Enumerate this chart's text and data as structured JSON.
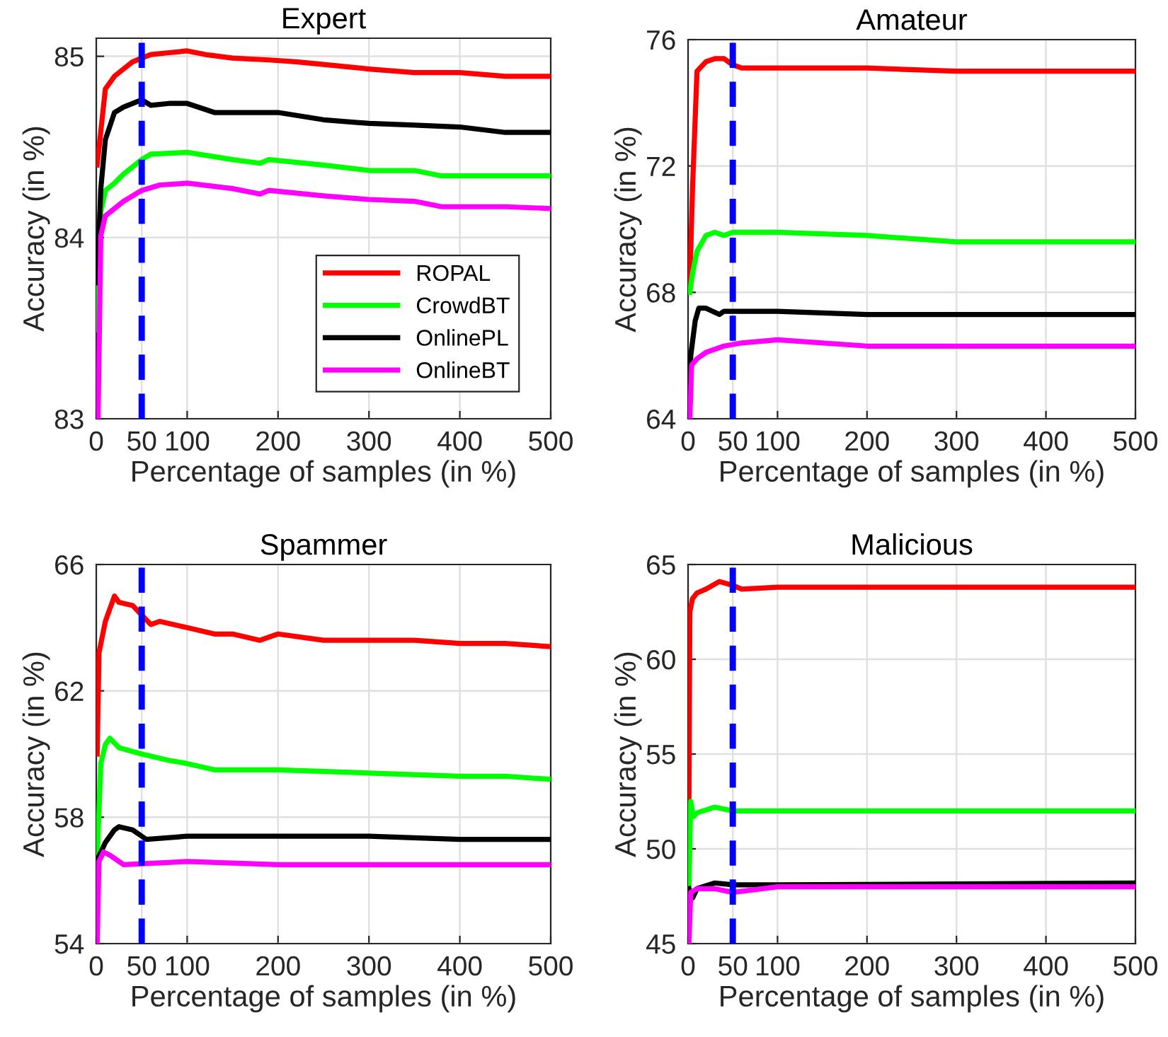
{
  "chart_data": [
    {
      "type": "line",
      "title": "Expert",
      "xlabel": "Percentage of samples (in %)",
      "ylabel": "Accuracy (in %)",
      "xlim": [
        0,
        500
      ],
      "xticks": [
        0,
        50,
        100,
        200,
        300,
        400,
        500
      ],
      "ylim": [
        83,
        85.1
      ],
      "yticks": [
        83,
        84,
        85
      ],
      "grid": true,
      "legend": "bottom right",
      "line_style": "solid",
      "ref_lines": [
        {
          "axis": "x",
          "value": 50,
          "color": "#0000ff",
          "line_style": "dashed"
        }
      ],
      "series": [
        {
          "name": "ROPAL",
          "color": "#ff0000",
          "x": [
            1,
            10,
            20,
            30,
            40,
            50,
            60,
            80,
            100,
            120,
            150,
            190,
            220,
            260,
            300,
            350,
            400,
            450,
            500
          ],
          "values": [
            84.4,
            84.82,
            84.89,
            84.93,
            84.97,
            84.99,
            85.01,
            85.02,
            85.03,
            85.01,
            84.99,
            84.98,
            84.97,
            84.95,
            84.93,
            84.91,
            84.91,
            84.89,
            84.89
          ]
        },
        {
          "name": "CrowdBT",
          "color": "#00ff00",
          "x": [
            1,
            5,
            10,
            20,
            30,
            50,
            60,
            100,
            150,
            180,
            190,
            250,
            300,
            350,
            380,
            450,
            500
          ],
          "values": [
            83.49,
            84.14,
            84.26,
            84.3,
            84.35,
            84.43,
            84.46,
            84.47,
            84.43,
            84.41,
            84.43,
            84.4,
            84.37,
            84.37,
            84.34,
            84.34,
            84.34
          ]
        },
        {
          "name": "OnlinePL",
          "color": "#000000",
          "x": [
            1,
            5,
            10,
            20,
            30,
            50,
            60,
            80,
            100,
            130,
            150,
            200,
            250,
            300,
            350,
            400,
            450,
            500
          ],
          "values": [
            83.75,
            84.27,
            84.54,
            84.69,
            84.72,
            84.76,
            84.73,
            84.74,
            84.74,
            84.69,
            84.69,
            84.69,
            84.65,
            84.63,
            84.62,
            84.61,
            84.58,
            84.58
          ]
        },
        {
          "name": "OnlineBT",
          "color": "#ff00ff",
          "x": [
            2,
            5,
            10,
            20,
            30,
            50,
            70,
            100,
            150,
            180,
            190,
            250,
            300,
            350,
            380,
            450,
            500
          ],
          "values": [
            83.0,
            84.01,
            84.12,
            84.16,
            84.2,
            84.26,
            84.29,
            84.3,
            84.27,
            84.24,
            84.26,
            84.23,
            84.21,
            84.2,
            84.17,
            84.17,
            84.16
          ]
        }
      ]
    },
    {
      "type": "line",
      "title": "Amateur",
      "xlabel": "Percentage of samples (in %)",
      "ylabel": "Accuracy (in %)",
      "xlim": [
        0,
        500
      ],
      "xticks": [
        0,
        50,
        100,
        200,
        300,
        400,
        500
      ],
      "ylim": [
        64,
        76
      ],
      "yticks": [
        64,
        68,
        72,
        76
      ],
      "grid": true,
      "line_style": "solid",
      "ref_lines": [
        {
          "axis": "x",
          "value": 50,
          "color": "#0000ff",
          "line_style": "dashed"
        }
      ],
      "series": [
        {
          "color": "#ff0000",
          "x": [
            2,
            5,
            10,
            20,
            30,
            40,
            50,
            60,
            100,
            200,
            300,
            400,
            500
          ],
          "values": [
            68.3,
            71.3,
            75.0,
            75.3,
            75.4,
            75.4,
            75.2,
            75.1,
            75.1,
            75.1,
            75.0,
            75.0,
            75.0
          ]
        },
        {
          "color": "#00ff00",
          "x": [
            2,
            5,
            10,
            20,
            30,
            40,
            50,
            60,
            100,
            200,
            300,
            360,
            400,
            450,
            500
          ],
          "values": [
            68.0,
            68.6,
            69.3,
            69.8,
            69.9,
            69.8,
            69.9,
            69.9,
            69.9,
            69.8,
            69.6,
            69.6,
            69.6,
            69.6,
            69.6
          ]
        },
        {
          "color": "#000000",
          "x": [
            1,
            3,
            8,
            12,
            20,
            35,
            40,
            50,
            100,
            200,
            300,
            500
          ],
          "values": [
            64.0,
            66.0,
            67.1,
            67.5,
            67.5,
            67.3,
            67.4,
            67.4,
            67.4,
            67.3,
            67.3,
            67.3
          ]
        },
        {
          "color": "#ff00ff",
          "x": [
            2,
            4,
            10,
            20,
            40,
            60,
            100,
            200,
            300,
            400,
            500
          ],
          "values": [
            64.0,
            65.7,
            65.9,
            66.1,
            66.3,
            66.4,
            66.5,
            66.3,
            66.3,
            66.3,
            66.3
          ]
        }
      ]
    },
    {
      "type": "line",
      "title": "Spammer",
      "xlabel": "Percentage of samples (in %)",
      "ylabel": "Accuracy (in %)",
      "xlim": [
        0,
        500
      ],
      "xticks": [
        0,
        50,
        100,
        200,
        300,
        400,
        500
      ],
      "ylim": [
        54,
        66
      ],
      "yticks": [
        54,
        58,
        62,
        66
      ],
      "grid": true,
      "line_style": "solid",
      "ref_lines": [
        {
          "axis": "x",
          "value": 50,
          "color": "#0000ff",
          "line_style": "dashed"
        }
      ],
      "series": [
        {
          "color": "#ff0000",
          "x": [
            1,
            3,
            10,
            20,
            25,
            40,
            50,
            60,
            70,
            100,
            130,
            150,
            180,
            200,
            250,
            300,
            350,
            400,
            450,
            500
          ],
          "values": [
            60.0,
            63.2,
            64.2,
            65.0,
            64.8,
            64.7,
            64.4,
            64.1,
            64.2,
            64.0,
            63.8,
            63.8,
            63.6,
            63.8,
            63.6,
            63.6,
            63.6,
            63.5,
            63.5,
            63.4
          ]
        },
        {
          "color": "#00ff00",
          "x": [
            1,
            5,
            10,
            15,
            25,
            50,
            80,
            100,
            130,
            200,
            300,
            400,
            450,
            500
          ],
          "values": [
            56.7,
            59.7,
            60.3,
            60.5,
            60.2,
            60.0,
            59.8,
            59.7,
            59.5,
            59.5,
            59.4,
            59.3,
            59.3,
            59.2
          ]
        },
        {
          "color": "#000000",
          "x": [
            2,
            10,
            20,
            25,
            40,
            50,
            55,
            100,
            200,
            300,
            400,
            500
          ],
          "values": [
            56.7,
            57.2,
            57.6,
            57.7,
            57.6,
            57.4,
            57.3,
            57.4,
            57.4,
            57.4,
            57.3,
            57.3
          ]
        },
        {
          "color": "#ff00ff",
          "x": [
            1,
            3,
            8,
            15,
            30,
            100,
            200,
            300,
            500
          ],
          "values": [
            54.0,
            56.6,
            56.9,
            56.8,
            56.5,
            56.6,
            56.5,
            56.5,
            56.5
          ]
        }
      ]
    },
    {
      "type": "line",
      "title": "Malicious",
      "xlabel": "Percentage of samples (in %)",
      "ylabel": "Accuracy (in %)",
      "xlim": [
        0,
        500
      ],
      "xticks": [
        0,
        50,
        100,
        200,
        300,
        400,
        500
      ],
      "ylim": [
        45,
        65
      ],
      "yticks": [
        45,
        50,
        55,
        60,
        65
      ],
      "grid": true,
      "line_style": "solid",
      "ref_lines": [
        {
          "axis": "x",
          "value": 50,
          "color": "#0000ff",
          "line_style": "dashed"
        }
      ],
      "series": [
        {
          "color": "#ff0000",
          "x": [
            1,
            2,
            5,
            10,
            20,
            35,
            50,
            60,
            100,
            200,
            500
          ],
          "values": [
            52.5,
            62.5,
            63.2,
            63.5,
            63.7,
            64.1,
            63.9,
            63.7,
            63.8,
            63.8,
            63.8
          ]
        },
        {
          "color": "#00ff00",
          "x": [
            1,
            3,
            6,
            10,
            30,
            50,
            100,
            500
          ],
          "values": [
            48.0,
            52.5,
            51.7,
            51.9,
            52.2,
            52.0,
            52.0,
            52.0
          ]
        },
        {
          "color": "#000000",
          "x": [
            1,
            5,
            10,
            30,
            50,
            100,
            500
          ],
          "values": [
            47.9,
            47.4,
            47.9,
            48.2,
            48.1,
            48.1,
            48.2
          ]
        },
        {
          "color": "#ff00ff",
          "x": [
            1,
            3,
            10,
            30,
            50,
            100,
            500
          ],
          "values": [
            45.0,
            47.7,
            47.9,
            47.9,
            47.7,
            48.0,
            48.0
          ]
        }
      ]
    }
  ]
}
